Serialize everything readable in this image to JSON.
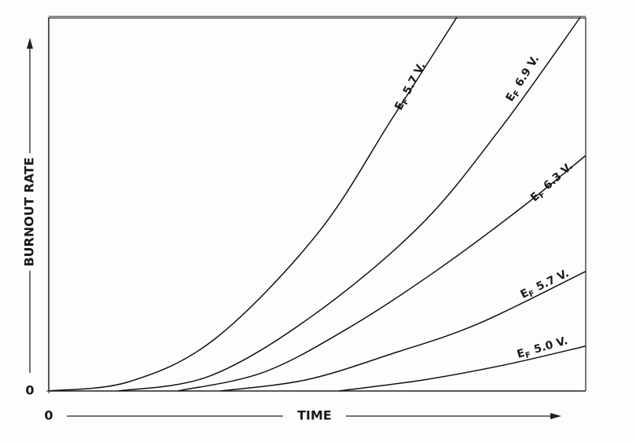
{
  "chart_data": {
    "type": "line",
    "xlabel": "TIME",
    "ylabel": "BURNOUT RATE",
    "xlim": [
      0,
      100
    ],
    "ylim": [
      0,
      100
    ],
    "xticks": [
      0
    ],
    "yticks": [
      0
    ],
    "color": "#111111",
    "series": [
      {
        "symbol": "E",
        "subscript": "F",
        "name": "5.7 V.",
        "x": [
          0,
          15,
          31,
          50,
          64,
          76
        ],
        "values": [
          0,
          2.5,
          14,
          42,
          73,
          100
        ]
      },
      {
        "symbol": "E",
        "subscript": "F",
        "name": "6.9 V.",
        "x": [
          13,
          30,
          49,
          69,
          84,
          99
        ],
        "values": [
          0,
          4,
          20,
          44,
          70,
          100
        ]
      },
      {
        "symbol": "E",
        "subscript": "F",
        "name": "6.3 V.",
        "x": [
          24,
          40,
          56,
          72,
          88,
          100
        ],
        "values": [
          0,
          5,
          17,
          32,
          49,
          63
        ]
      },
      {
        "symbol": "E",
        "subscript": "F",
        "name": "5.7 V.",
        "x": [
          32,
          48,
          64,
          80,
          100
        ],
        "values": [
          0,
          3,
          10,
          18,
          32
        ]
      },
      {
        "symbol": "E",
        "subscript": "F",
        "name": "5.0 V.",
        "x": [
          54,
          70,
          85,
          100
        ],
        "values": [
          0,
          3,
          7,
          12
        ]
      }
    ]
  }
}
